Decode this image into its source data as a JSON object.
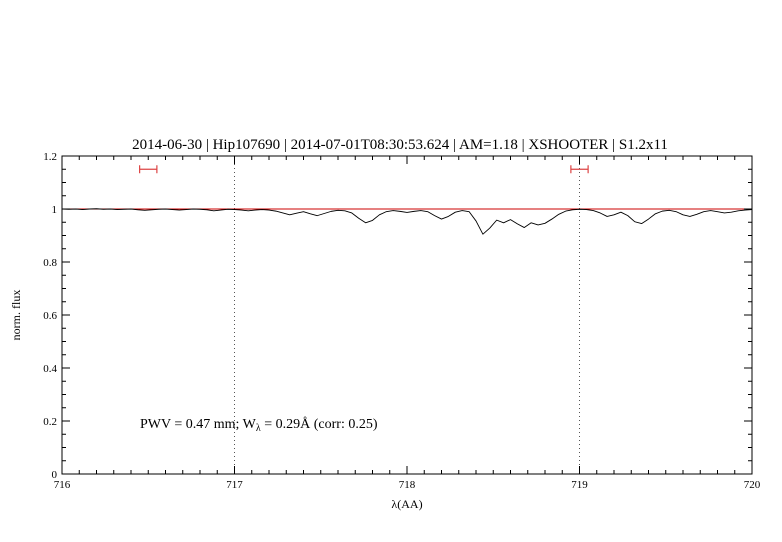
{
  "title": "2014-06-30 | Hip107690 | 2014-07-01T08:30:53.624 | AM=1.18 | XSHOOTER | S1.2x11",
  "annotation": {
    "pre": "PWV = 0.47 mm; W",
    "sub": "λ",
    "post": " = 0.29Å (corr: 0.25)"
  },
  "chart_data": {
    "type": "line",
    "title": "2014-06-30 | Hip107690 | 2014-07-01T08:30:53.624 | AM=1.18 | XSHOOTER | S1.2x11",
    "xlabel": "λ(AA)",
    "ylabel": "norm. flux",
    "xlim": [
      716,
      720
    ],
    "ylim": [
      0,
      1.2
    ],
    "grid": false,
    "legend": "none",
    "xticks": [
      {
        "v": 716,
        "label": "716"
      },
      {
        "v": 717,
        "label": "717"
      },
      {
        "v": 718,
        "label": "718"
      },
      {
        "v": 719,
        "label": "719"
      },
      {
        "v": 720,
        "label": "720"
      }
    ],
    "yticks": [
      {
        "v": 0,
        "label": "0"
      },
      {
        "v": 0.2,
        "label": "0.2"
      },
      {
        "v": 0.4,
        "label": "0.4"
      },
      {
        "v": 0.6,
        "label": "0.6"
      },
      {
        "v": 0.8,
        "label": "0.8"
      },
      {
        "v": 1,
        "label": "1"
      },
      {
        "v": 1.2,
        "label": "1.2"
      }
    ],
    "x_minor_step": 0.1,
    "y_minor_step": 0.05,
    "ref_lines_x": [
      717,
      719
    ],
    "continuum_y": 1.0,
    "band_markers": [
      {
        "center": 716.5,
        "half_width": 0.05,
        "y": 1.15
      },
      {
        "center": 719.0,
        "half_width": 0.05,
        "y": 1.15
      }
    ],
    "colors": {
      "spectrum": "#000000",
      "continuum": "#cc0000",
      "marker": "#dd4444",
      "title": "#0000cc",
      "annotation": "#0000cc",
      "ref_line": "#555555"
    },
    "series": [
      {
        "name": "spectrum",
        "x": [
          716.0,
          716.04,
          716.08,
          716.12,
          716.16,
          716.2,
          716.24,
          716.28,
          716.32,
          716.36,
          716.4,
          716.44,
          716.48,
          716.52,
          716.56,
          716.6,
          716.64,
          716.68,
          716.72,
          716.76,
          716.8,
          716.84,
          716.88,
          716.92,
          716.96,
          717.0,
          717.04,
          717.08,
          717.12,
          717.16,
          717.2,
          717.24,
          717.28,
          717.32,
          717.36,
          717.4,
          717.44,
          717.48,
          717.52,
          717.56,
          717.6,
          717.64,
          717.68,
          717.72,
          717.76,
          717.8,
          717.84,
          717.88,
          717.92,
          717.96,
          718.0,
          718.04,
          718.08,
          718.12,
          718.16,
          718.2,
          718.24,
          718.28,
          718.32,
          718.36,
          718.4,
          718.44,
          718.48,
          718.52,
          718.56,
          718.6,
          718.64,
          718.68,
          718.72,
          718.76,
          718.8,
          718.84,
          718.88,
          718.92,
          718.96,
          719.0,
          719.04,
          719.08,
          719.12,
          719.16,
          719.2,
          719.24,
          719.28,
          719.32,
          719.36,
          719.4,
          719.44,
          719.48,
          719.52,
          719.56,
          719.6,
          719.64,
          719.68,
          719.72,
          719.76,
          719.8,
          719.84,
          719.88,
          719.92,
          719.96,
          720.0
        ],
        "y": [
          1.0,
          0.999,
          1.0,
          0.998,
          1.0,
          1.001,
          0.999,
          1.0,
          0.998,
          0.999,
          1.0,
          0.997,
          0.995,
          0.997,
          0.999,
          1.0,
          0.998,
          0.996,
          0.998,
          1.0,
          0.999,
          0.997,
          0.993,
          0.996,
          0.999,
          0.998,
          0.996,
          0.993,
          0.996,
          0.998,
          0.996,
          0.992,
          0.985,
          0.978,
          0.984,
          0.99,
          0.982,
          0.975,
          0.983,
          0.991,
          0.995,
          0.993,
          0.985,
          0.965,
          0.948,
          0.957,
          0.978,
          0.99,
          0.994,
          0.991,
          0.987,
          0.991,
          0.994,
          0.99,
          0.975,
          0.962,
          0.972,
          0.988,
          0.994,
          0.99,
          0.955,
          0.905,
          0.928,
          0.958,
          0.948,
          0.96,
          0.944,
          0.93,
          0.948,
          0.94,
          0.946,
          0.962,
          0.98,
          0.992,
          0.997,
          0.999,
          0.998,
          0.994,
          0.985,
          0.972,
          0.978,
          0.988,
          0.975,
          0.952,
          0.945,
          0.962,
          0.982,
          0.992,
          0.995,
          0.99,
          0.978,
          0.972,
          0.98,
          0.99,
          0.994,
          0.99,
          0.985,
          0.988,
          0.993,
          0.996,
          0.998
        ]
      },
      {
        "name": "continuum fit",
        "y_const": 1.0
      }
    ]
  }
}
